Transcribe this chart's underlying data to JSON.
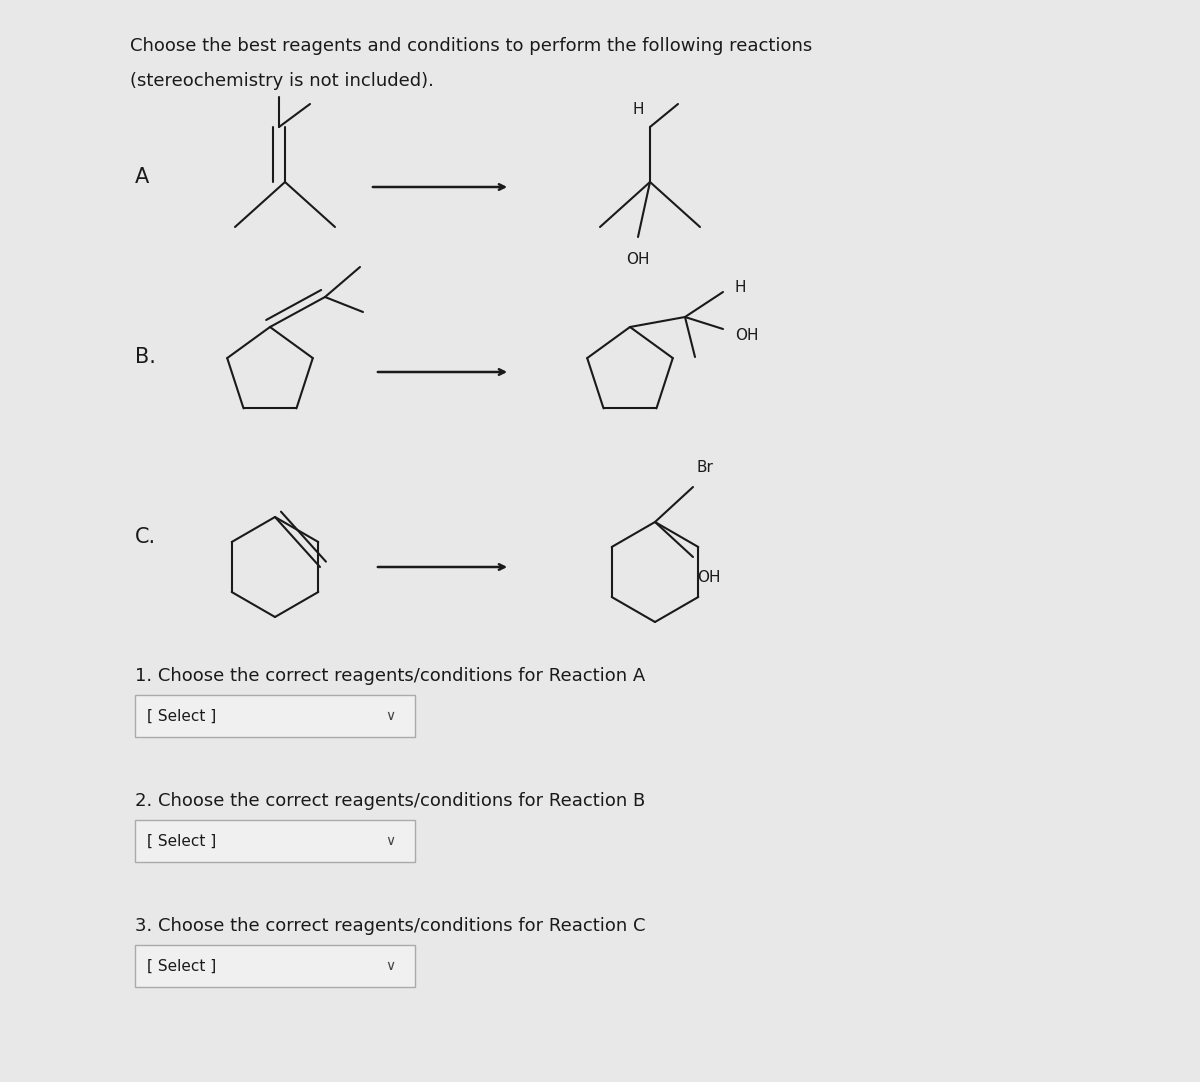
{
  "bg_color": "#e8e8e8",
  "title_line1": "Choose the best reagents and conditions to perform the following reactions",
  "title_line2": "(stereochemistry is not included).",
  "reaction_labels": [
    "A",
    "B.",
    "C."
  ],
  "question1": "1. Choose the correct reagents/conditions for Reaction A",
  "question2": "2. Choose the correct reagents/conditions for Reaction B",
  "question3": "3. Choose the correct reagents/conditions for Reaction C",
  "select_text": "[ Select ]",
  "text_color": "#1a1a1a",
  "line_color": "#1a1a1a",
  "box_color": "#d0d0d0",
  "font_size_title": 13,
  "font_size_label": 15,
  "font_size_question": 13,
  "font_size_select": 11,
  "font_size_atom": 11
}
